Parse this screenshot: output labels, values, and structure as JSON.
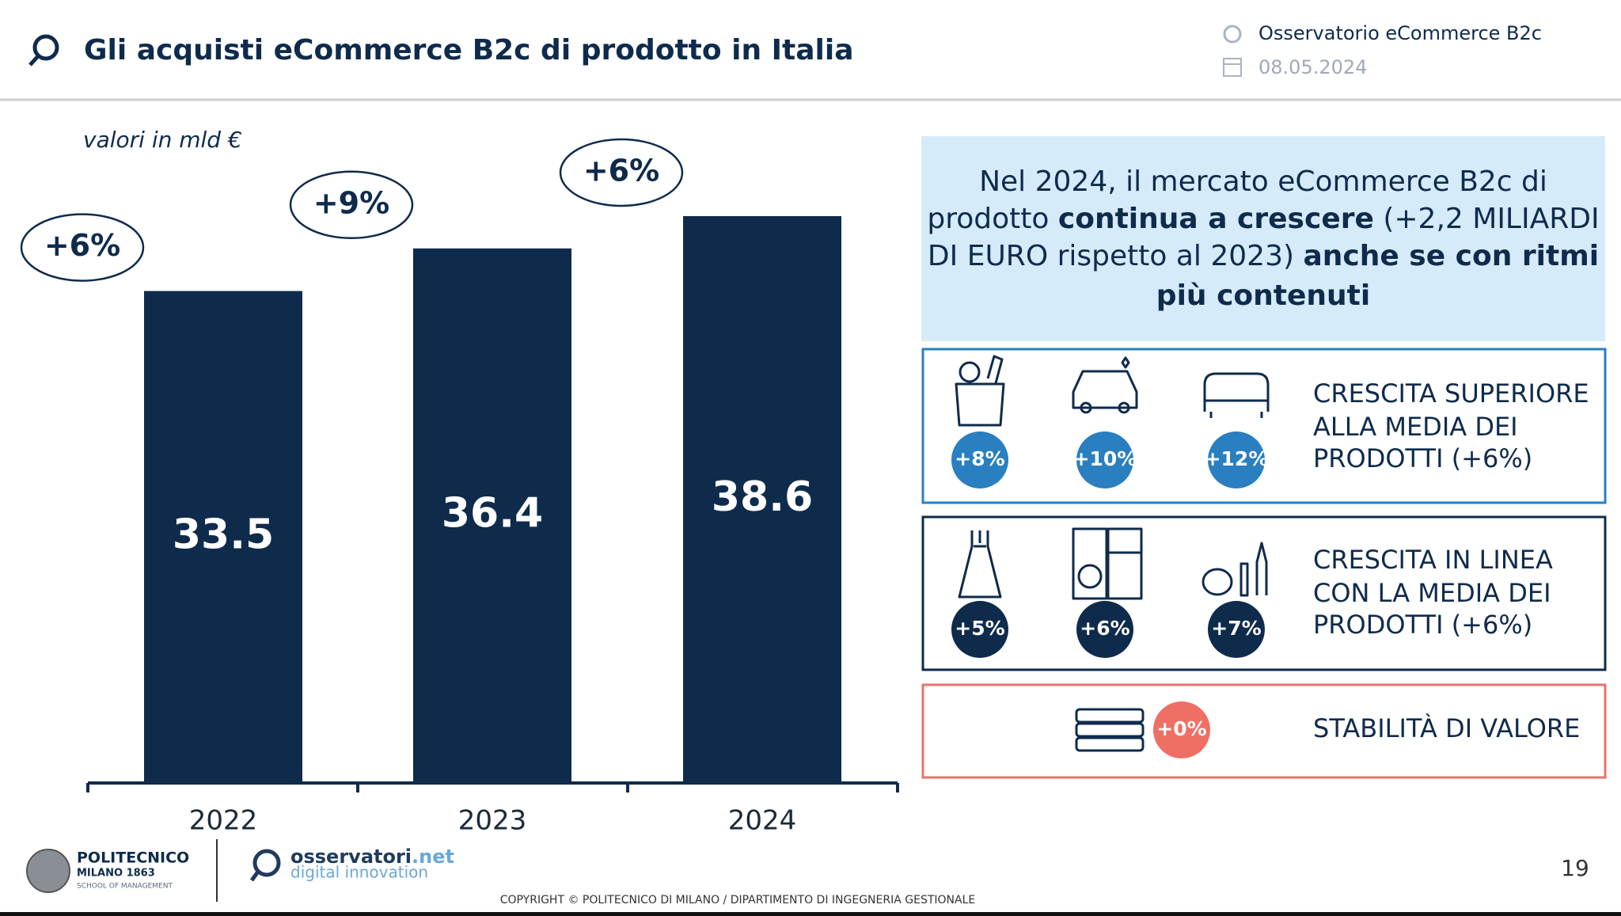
{
  "header": {
    "title": "Gli acquisti eCommerce B2c di prodotto in Italia",
    "source": "Osservatorio eCommerce B2c",
    "date": "08.05.2024"
  },
  "chart_data": {
    "type": "bar",
    "subtitle": "valori in mld €",
    "categories": [
      "2022",
      "2023",
      "2024"
    ],
    "values": [
      33.5,
      36.4,
      38.6
    ],
    "annotations": [
      "+6%",
      "+9%",
      "+6%"
    ],
    "color": "#0f2b4c",
    "ylim": [
      0,
      40
    ]
  },
  "callout": {
    "lines": [
      [
        {
          "text": "Nel 2024, il mercato eCommerce B2c di",
          "bold": false
        }
      ],
      [
        {
          "text": "prodotto ",
          "bold": false
        },
        {
          "text": "continua a crescere",
          "bold": true
        },
        {
          "text": " (+2,2 MILIARDI",
          "bold": false
        }
      ],
      [
        {
          "text": "DI EURO rispetto al 2023) ",
          "bold": false
        },
        {
          "text": "anche se con ritmi",
          "bold": true
        }
      ],
      [
        {
          "text": "più contenuti",
          "bold": true
        }
      ]
    ]
  },
  "groups": [
    {
      "badges": [
        "+8%",
        "+10%",
        "+12%"
      ],
      "lines": [
        "CRESCITA SUPERIORE",
        "ALLA MEDIA DEI",
        "PRODOTTI (+6%)"
      ],
      "color": "#2a7fc1"
    },
    {
      "badges": [
        "+5%",
        "+6%",
        "+7%"
      ],
      "lines": [
        "CRESCITA IN LINEA",
        "CON LA MEDIA DEI",
        "PRODOTTI (+6%)"
      ],
      "color": "#0f2b4c"
    },
    {
      "badges": [
        "+0%"
      ],
      "lines": [
        "STABILITÀ DI VALORE"
      ],
      "color": "#ef6f64"
    }
  ],
  "footer": {
    "school": [
      "POLITECNICO",
      "MILANO 1863",
      "SCHOOL OF MANAGEMENT"
    ],
    "brand": [
      "osservatori",
      ".net"
    ],
    "tagline": "digital innovation",
    "copyright": "COPYRIGHT © POLITECNICO DI MILANO / DIPARTIMENTO DI INGEGNERIA GESTIONALE",
    "page": "19"
  }
}
